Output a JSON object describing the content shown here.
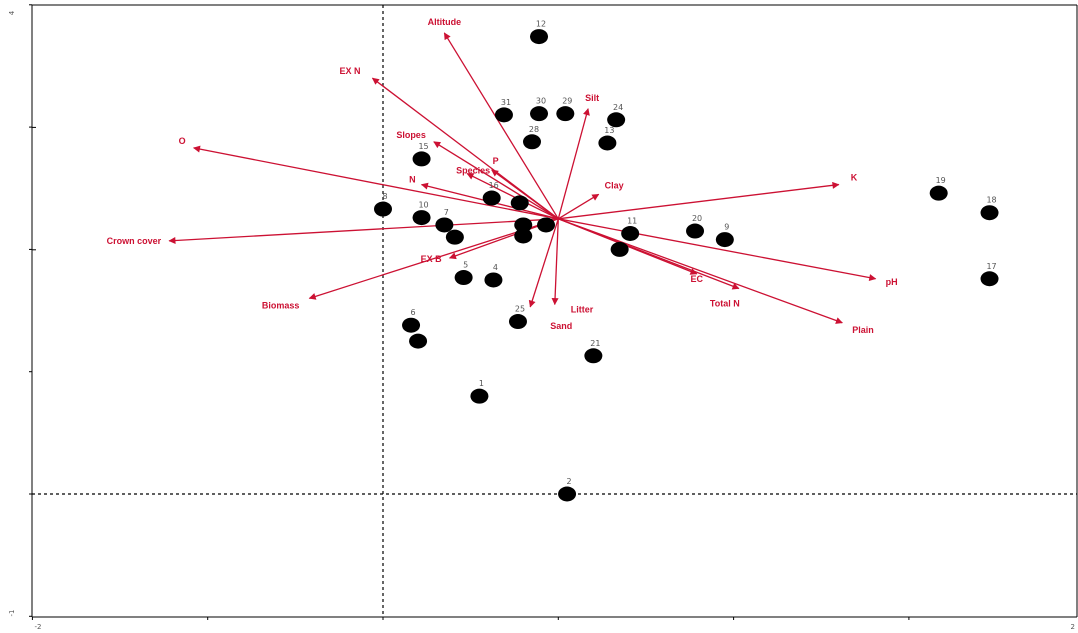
{
  "chart_data": {
    "type": "scatter",
    "title": "",
    "xlabel": "",
    "ylabel": "",
    "xlim": [
      -2,
      2
    ],
    "ylim": [
      -1,
      4
    ],
    "x_ticks": [
      "-2",
      "2"
    ],
    "y_ticks": [
      "-1",
      "4"
    ],
    "reference_lines": {
      "x": 0,
      "y": 0
    },
    "arrow_origin": [
      1,
      2.25
    ],
    "colors": {
      "arrow": "#cc1133",
      "point": "#000000",
      "axis": "#000000",
      "tick_label": "#555555"
    },
    "sites": [
      {
        "label": "1",
        "x": 0.55,
        "y": 0.8
      },
      {
        "label": "2",
        "x": 1.05,
        "y": 0.0
      },
      {
        "label": "4",
        "x": 0.63,
        "y": 1.75
      },
      {
        "label": "5",
        "x": 0.46,
        "y": 1.77
      },
      {
        "label": "6",
        "x": 0.16,
        "y": 1.38
      },
      {
        "label": "",
        "x": 0.2,
        "y": 1.25
      },
      {
        "label": "7",
        "x": 0.35,
        "y": 2.2
      },
      {
        "label": "",
        "x": 0.41,
        "y": 2.1
      },
      {
        "label": "8",
        "x": 0.0,
        "y": 2.33
      },
      {
        "label": "9",
        "x": 1.95,
        "y": 2.08
      },
      {
        "label": "10",
        "x": 0.22,
        "y": 2.26
      },
      {
        "label": "11",
        "x": 1.41,
        "y": 2.13
      },
      {
        "label": "",
        "x": 1.35,
        "y": 2.0
      },
      {
        "label": "12",
        "x": 0.89,
        "y": 3.74
      },
      {
        "label": "13",
        "x": 1.28,
        "y": 2.87
      },
      {
        "label": "15",
        "x": 0.22,
        "y": 2.74
      },
      {
        "label": "16",
        "x": 0.62,
        "y": 2.42
      },
      {
        "label": "",
        "x": 0.78,
        "y": 2.38
      },
      {
        "label": "17",
        "x": 3.46,
        "y": 1.76
      },
      {
        "label": "18",
        "x": 3.46,
        "y": 2.3
      },
      {
        "label": "19",
        "x": 3.17,
        "y": 2.46
      },
      {
        "label": "20",
        "x": 1.78,
        "y": 2.15
      },
      {
        "label": "21",
        "x": 1.2,
        "y": 1.13
      },
      {
        "label": "24",
        "x": 1.33,
        "y": 3.06
      },
      {
        "label": "",
        "x": 0.8,
        "y": 2.2
      },
      {
        "label": "",
        "x": 0.8,
        "y": 2.11
      },
      {
        "label": "",
        "x": 0.93,
        "y": 2.2
      },
      {
        "label": "25",
        "x": 0.77,
        "y": 1.41
      },
      {
        "label": "28",
        "x": 0.85,
        "y": 2.88
      },
      {
        "label": "29",
        "x": 1.04,
        "y": 3.11
      },
      {
        "label": "30",
        "x": 0.89,
        "y": 3.11
      },
      {
        "label": "31",
        "x": 0.69,
        "y": 3.1
      }
    ],
    "vectors": [
      {
        "label": "Altitude",
        "x": 0.35,
        "y": 3.77
      },
      {
        "label": "EX N",
        "x": -0.06,
        "y": 3.4
      },
      {
        "label": "Silt",
        "x": 1.17,
        "y": 3.15
      },
      {
        "label": "O",
        "x": -1.08,
        "y": 2.83
      },
      {
        "label": "Slopes",
        "x": 0.29,
        "y": 2.88
      },
      {
        "label": "P",
        "x": 0.62,
        "y": 2.65
      },
      {
        "label": "Species",
        "x": 0.48,
        "y": 2.62
      },
      {
        "label": "N",
        "x": 0.22,
        "y": 2.53
      },
      {
        "label": "Clay",
        "x": 1.23,
        "y": 2.45
      },
      {
        "label": "K",
        "x": 2.6,
        "y": 2.53
      },
      {
        "label": "Crown cover",
        "x": -1.22,
        "y": 2.07
      },
      {
        "label": "EX B",
        "x": 0.38,
        "y": 1.93
      },
      {
        "label": "Biomass",
        "x": -0.42,
        "y": 1.6
      },
      {
        "label": "Litter",
        "x": 0.98,
        "y": 1.55
      },
      {
        "label": "Sand",
        "x": 0.84,
        "y": 1.53
      },
      {
        "label": "EC",
        "x": 1.79,
        "y": 1.8
      },
      {
        "label": "Total N",
        "x": 2.03,
        "y": 1.68
      },
      {
        "label": "pH",
        "x": 2.81,
        "y": 1.76
      },
      {
        "label": "Plain",
        "x": 2.62,
        "y": 1.4
      }
    ]
  }
}
